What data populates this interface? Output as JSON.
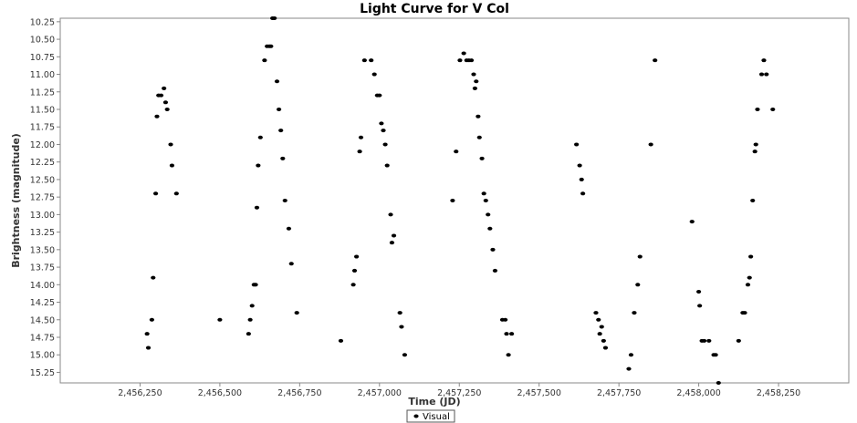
{
  "chart_data": {
    "type": "scatter",
    "title": "Light Curve for V Col",
    "xlabel": "Time (JD)",
    "ylabel": "Brightness (magnitude)",
    "xlim": [
      2456000,
      2458470
    ],
    "ylim": [
      10.2,
      15.4
    ],
    "y_inverted": true,
    "xticks": [
      2456250,
      2456500,
      2456750,
      2457000,
      2457250,
      2457500,
      2457750,
      2458000,
      2458250
    ],
    "xtick_labels": [
      "2,456,250",
      "2,456,500",
      "2,456,750",
      "2,457,000",
      "2,457,250",
      "2,457,500",
      "2,457,750",
      "2,458,000",
      "2,458,250"
    ],
    "yticks": [
      10.25,
      10.5,
      10.75,
      11.0,
      11.25,
      11.5,
      11.75,
      12.0,
      12.25,
      12.5,
      12.75,
      13.0,
      13.25,
      13.5,
      13.75,
      14.0,
      14.25,
      14.5,
      14.75,
      15.0,
      15.25
    ],
    "ytick_labels": [
      "10.25",
      "10.50",
      "10.75",
      "11.00",
      "11.25",
      "11.50",
      "11.75",
      "12.00",
      "12.25",
      "12.50",
      "12.75",
      "13.00",
      "13.25",
      "13.50",
      "13.75",
      "14.00",
      "14.25",
      "14.50",
      "14.75",
      "15.00",
      "15.25"
    ],
    "grid": false,
    "legend_position": "bottom-center",
    "series": [
      {
        "name": "Visual",
        "color": "#000000",
        "marker": "ellipse",
        "points": [
          [
            2456272,
            14.7
          ],
          [
            2456276,
            14.9
          ],
          [
            2456287,
            14.5
          ],
          [
            2456291,
            13.9
          ],
          [
            2456299,
            12.7
          ],
          [
            2456303,
            11.6
          ],
          [
            2456308,
            11.3
          ],
          [
            2456316,
            11.3
          ],
          [
            2456325,
            11.2
          ],
          [
            2456330,
            11.4
          ],
          [
            2456335,
            11.5
          ],
          [
            2456346,
            12.0
          ],
          [
            2456350,
            12.3
          ],
          [
            2456364,
            12.7
          ],
          [
            2456500,
            14.5
          ],
          [
            2456590,
            14.7
          ],
          [
            2456595,
            14.5
          ],
          [
            2456601,
            14.3
          ],
          [
            2456607,
            14.0
          ],
          [
            2456612,
            14.0
          ],
          [
            2456616,
            12.9
          ],
          [
            2456620,
            12.3
          ],
          [
            2456627,
            11.9
          ],
          [
            2456640,
            10.8
          ],
          [
            2456648,
            10.6
          ],
          [
            2456655,
            10.6
          ],
          [
            2456660,
            10.6
          ],
          [
            2456665,
            10.2
          ],
          [
            2456671,
            10.2
          ],
          [
            2456679,
            11.1
          ],
          [
            2456685,
            11.5
          ],
          [
            2456691,
            11.8
          ],
          [
            2456697,
            12.2
          ],
          [
            2456704,
            12.8
          ],
          [
            2456716,
            13.2
          ],
          [
            2456724,
            13.7
          ],
          [
            2456741,
            14.4
          ],
          [
            2456879,
            14.8
          ],
          [
            2456918,
            14.0
          ],
          [
            2456922,
            13.8
          ],
          [
            2456928,
            13.6
          ],
          [
            2456938,
            12.1
          ],
          [
            2456942,
            11.9
          ],
          [
            2456953,
            10.8
          ],
          [
            2456974,
            10.8
          ],
          [
            2456984,
            11.0
          ],
          [
            2456993,
            11.3
          ],
          [
            2457000,
            11.3
          ],
          [
            2457006,
            11.7
          ],
          [
            2457012,
            11.8
          ],
          [
            2457018,
            12.0
          ],
          [
            2457024,
            12.3
          ],
          [
            2457035,
            13.0
          ],
          [
            2457039,
            13.4
          ],
          [
            2457045,
            13.3
          ],
          [
            2457064,
            14.4
          ],
          [
            2457069,
            14.6
          ],
          [
            2457079,
            15.0
          ],
          [
            2457229,
            12.8
          ],
          [
            2457240,
            12.1
          ],
          [
            2457252,
            10.8
          ],
          [
            2457264,
            10.7
          ],
          [
            2457273,
            10.8
          ],
          [
            2457280,
            10.8
          ],
          [
            2457288,
            10.8
          ],
          [
            2457295,
            11.0
          ],
          [
            2457299,
            11.2
          ],
          [
            2457303,
            11.1
          ],
          [
            2457309,
            11.6
          ],
          [
            2457313,
            11.9
          ],
          [
            2457321,
            12.2
          ],
          [
            2457327,
            12.7
          ],
          [
            2457333,
            12.8
          ],
          [
            2457340,
            13.0
          ],
          [
            2457346,
            13.2
          ],
          [
            2457355,
            13.5
          ],
          [
            2457362,
            13.8
          ],
          [
            2457385,
            14.5
          ],
          [
            2457394,
            14.5
          ],
          [
            2457398,
            14.7
          ],
          [
            2457404,
            15.0
          ],
          [
            2457414,
            14.7
          ],
          [
            2457617,
            12.0
          ],
          [
            2457627,
            12.3
          ],
          [
            2457633,
            12.5
          ],
          [
            2457637,
            12.7
          ],
          [
            2457678,
            14.4
          ],
          [
            2457686,
            14.5
          ],
          [
            2457690,
            14.7
          ],
          [
            2457696,
            14.6
          ],
          [
            2457702,
            14.8
          ],
          [
            2457708,
            14.9
          ],
          [
            2457781,
            15.2
          ],
          [
            2457788,
            15.0
          ],
          [
            2457798,
            14.4
          ],
          [
            2457809,
            14.0
          ],
          [
            2457816,
            13.6
          ],
          [
            2457850,
            12.0
          ],
          [
            2457863,
            10.8
          ],
          [
            2457979,
            13.1
          ],
          [
            2458000,
            14.1
          ],
          [
            2458003,
            14.3
          ],
          [
            2458010,
            14.8
          ],
          [
            2458017,
            14.8
          ],
          [
            2458032,
            14.8
          ],
          [
            2458047,
            15.0
          ],
          [
            2458053,
            15.0
          ],
          [
            2458062,
            15.4
          ],
          [
            2458125,
            14.8
          ],
          [
            2458138,
            14.4
          ],
          [
            2458144,
            14.4
          ],
          [
            2458154,
            14.0
          ],
          [
            2458159,
            13.9
          ],
          [
            2458163,
            13.6
          ],
          [
            2458169,
            12.8
          ],
          [
            2458176,
            12.1
          ],
          [
            2458179,
            12.0
          ],
          [
            2458184,
            11.5
          ],
          [
            2458197,
            11.0
          ],
          [
            2458204,
            10.8
          ],
          [
            2458212,
            11.0
          ],
          [
            2458232,
            11.5
          ]
        ]
      }
    ]
  }
}
